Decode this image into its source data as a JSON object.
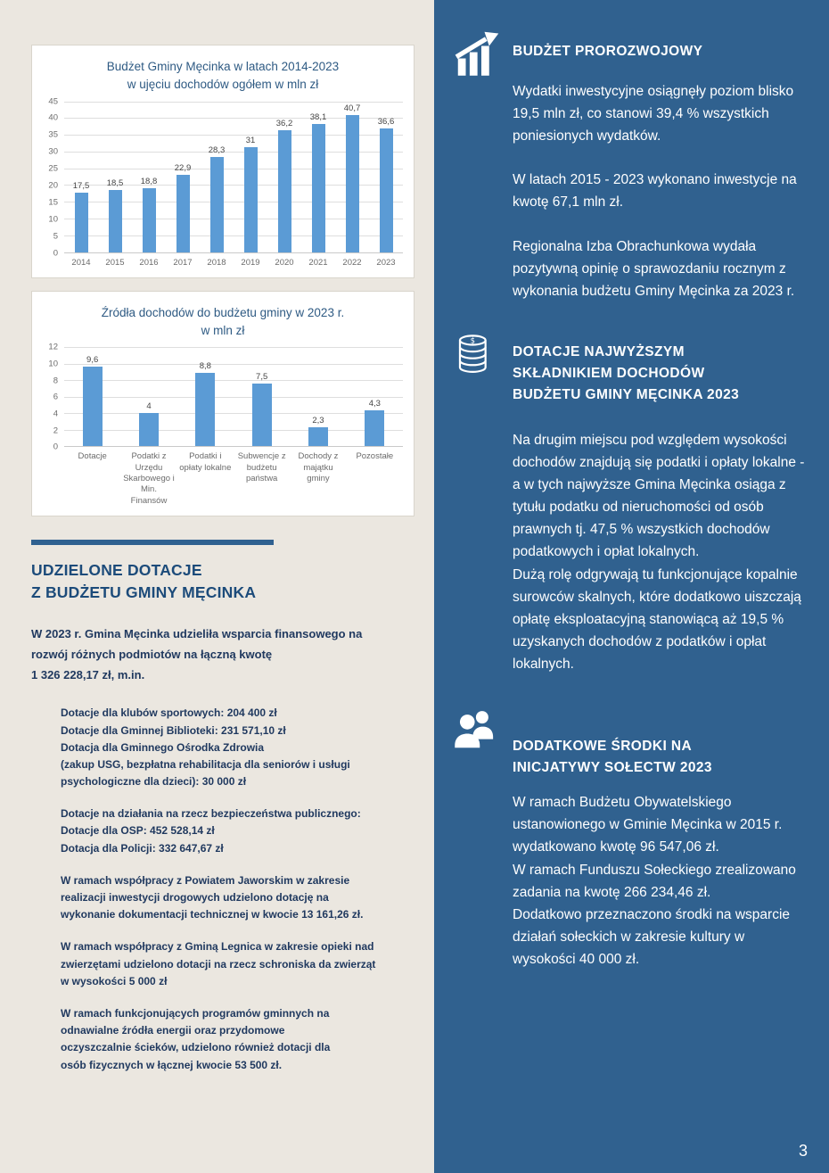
{
  "page": {
    "number": "3"
  },
  "left": {
    "heading": "UDZIELONE DOTACJE\nZ BUDŻETU GMINY MĘCINKA",
    "intro_lines": [
      "W 2023 r. Gmina Męcinka udzieliła wsparcia finansowego na",
      "rozwój różnych podmiotów na łączną kwotę",
      "1 326 228,17 zł, m.in."
    ],
    "blocks": [
      [
        "Dotacje dla klubów sportowych: 204 400 zł",
        "Dotacje dla Gminnej Biblioteki: 231 571,10 zł",
        "Dotacja dla Gminnego Ośrodka Zdrowia",
        "(zakup USG, bezpłatna rehabilitacja dla seniorów i usługi",
        "psychologiczne dla dzieci): 30 000 zł"
      ],
      [
        "Dotacje na działania na rzecz bezpieczeństwa publicznego:",
        "Dotacje dla OSP: 452 528,14 zł",
        "Dotacja dla Policji: 332 647,67 zł"
      ],
      [
        "W ramach współpracy z Powiatem Jaworskim w zakresie",
        "realizacji inwestycji drogowych udzielono dotację  na",
        "wykonanie dokumentacji technicznej w kwocie 13 161,26 zł."
      ],
      [
        "W ramach współpracy z Gminą Legnica w zakresie opieki nad",
        "zwierzętami udzielono dotacji na rzecz schroniska da zwierząt",
        "w wysokości 5 000 zł"
      ],
      [
        "W ramach funkcjonujących programów gminnych na",
        "odnawialne źródła energii oraz przydomowe",
        "oczyszczalnie ścieków, udzielono również dotacji dla",
        "osób fizycznych w łącznej kwocie 53 500 zł."
      ]
    ]
  },
  "right": {
    "sections": [
      {
        "icon": "growth-chart-icon",
        "heading": "BUDŻET PROROZWOJOWY",
        "paragraphs": [
          "Wydatki inwestycyjne osiągnęły poziom blisko 19,5 mln zł, co stanowi 39,4 % wszystkich poniesionych wydatków.",
          "W latach 2015 - 2023 wykonano inwestycje na kwotę 67,1 mln zł.",
          "Regionalna Izba Obrachunkowa wydała pozytywną opinię o sprawozdaniu rocznym z wykonania budżetu Gminy Męcinka za 2023 r."
        ]
      },
      {
        "icon": "coins-icon",
        "heading": "DOTACJE NAJWYŻSZYM\nSKŁADNIKIEM DOCHODÓW\nBUDŻETU GMINY MĘCINKA 2023",
        "paragraphs": [
          "Na  drugim miejscu pod względem wysokości dochodów znajdują się podatki i opłaty lokalne -  a w tych najwyższe Gmina Męcinka osiąga z tytułu podatku od nieruchomości od osób prawnych tj. 47,5 % wszystkich dochodów podatkowych i opłat lokalnych.",
          "Dużą rolę odgrywają tu funkcjonujące kopalnie surowców skalnych, które dodatkowo uiszczają opłatę eksploatacyjną stanowiącą aż 19,5 % uzyskanych dochodów z podatków i opłat lokalnych."
        ]
      },
      {
        "icon": "people-icon",
        "heading": "DODATKOWE ŚRODKI NA\nINICJATYWY SOŁECTW 2023",
        "paragraphs": [
          "W ramach Budżetu Obywatelskiego ustanowionego w Gminie Męcinka w 2015 r. wydatkowano kwotę 96 547,06 zł.",
          "W ramach Funduszu Sołeckiego zrealizowano zadania na kwotę 266 234,46 zł.",
          "Dodatkowo przeznaczono środki na wsparcie działań sołeckich w zakresie kultury w wysokości  40 000 zł."
        ]
      }
    ]
  },
  "colors": {
    "accent_blue": "#2f6190",
    "bar_blue": "#5b9bd5",
    "left_background": "#ebe7e0",
    "navy_text": "#20395f"
  },
  "chart_data": [
    {
      "type": "bar",
      "title": "Budżet Gminy Męcinka w latach 2014-2023\nw ujęciu dochodów ogółem w mln zł",
      "categories": [
        "2014",
        "2015",
        "2016",
        "2017",
        "2018",
        "2019",
        "2020",
        "2021",
        "2022",
        "2023"
      ],
      "values": [
        17.5,
        18.5,
        18.8,
        22.9,
        28.3,
        31,
        36.2,
        38.1,
        40.7,
        36.6
      ],
      "value_labels": [
        "17,5",
        "18,5",
        "18,8",
        "22,9",
        "28,3",
        "31",
        "36,2",
        "38,1",
        "40,7",
        "36,6"
      ],
      "xlabel": "",
      "ylabel": "",
      "ylim": [
        0,
        45
      ],
      "ytick": 5,
      "grid": true,
      "legend": false,
      "bar_color": "#5b9bd5",
      "unit": "mln zł"
    },
    {
      "type": "bar",
      "title": "Źródła dochodów do budżetu gminy w 2023 r.\nw mln zł",
      "categories": [
        "Dotacje",
        "Podatki z Urzędu Skarbowego i Min. Finansów",
        "Podatki i opłaty lokalne",
        "Subwencje z budżetu państwa",
        "Dochody z majątku gminy",
        "Pozostałe"
      ],
      "values": [
        9.6,
        4,
        8.8,
        7.5,
        2.3,
        4.3
      ],
      "value_labels": [
        "9,6",
        "4",
        "8,8",
        "7,5",
        "2,3",
        "4,3"
      ],
      "xlabel": "",
      "ylabel": "",
      "ylim": [
        0,
        12
      ],
      "ytick": 2,
      "grid": true,
      "legend": false,
      "bar_color": "#5b9bd5",
      "unit": "mln zł"
    }
  ]
}
